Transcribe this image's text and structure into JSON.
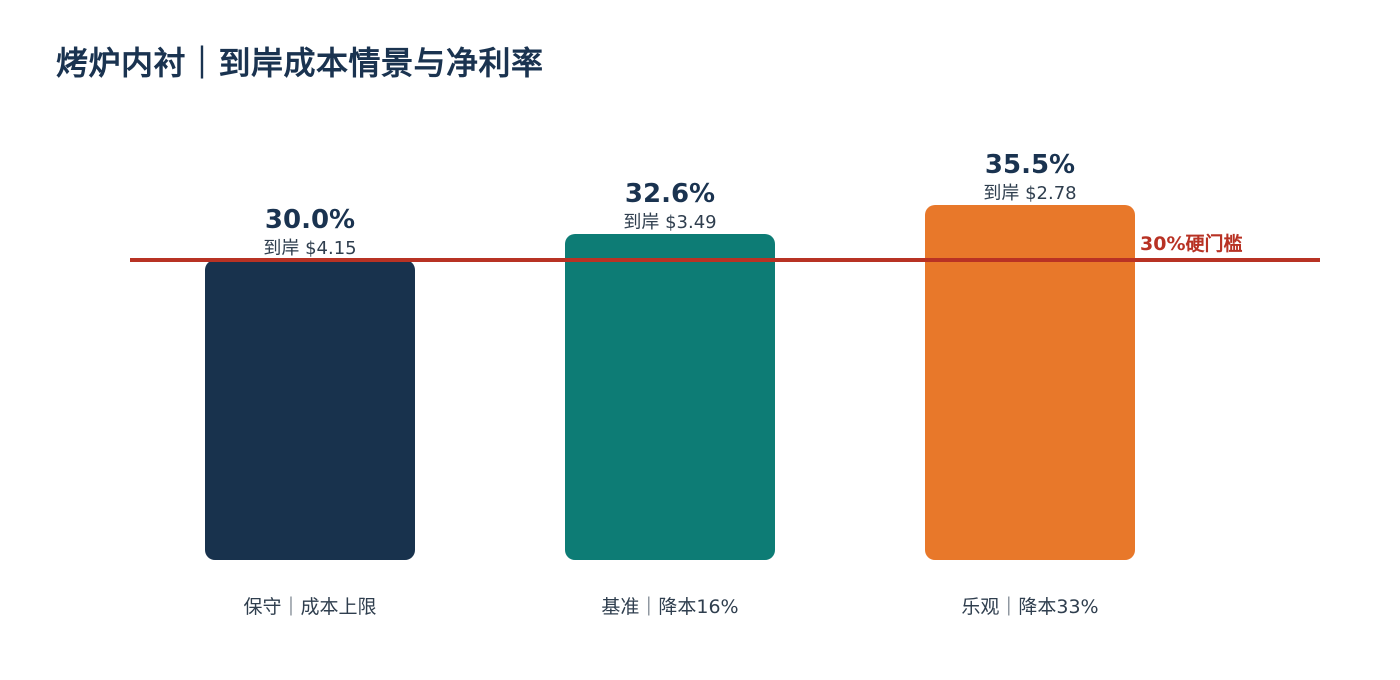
{
  "title": "烤炉内衬｜到岸成本情景与净利率",
  "colors": {
    "title": "#1a3350",
    "threshold": "#b83224",
    "value_label": "#1a3350",
    "sub_label": "#2f3e4e",
    "category_label": "#2f3e4e"
  },
  "chart_data": {
    "type": "bar",
    "categories": [
      "保守｜成本上限",
      "基准｜降本16%",
      "乐观｜降本33%"
    ],
    "values": [
      30.0,
      32.6,
      35.5
    ],
    "value_labels": [
      "30.0%",
      "32.6%",
      "35.5%"
    ],
    "cost_labels": [
      "到岸 $4.15",
      "到岸 $3.49",
      "到岸 $2.78"
    ],
    "bar_colors": [
      "#18324d",
      "#0d7c75",
      "#e8782a"
    ],
    "ylim": [
      0,
      35.5
    ],
    "threshold": {
      "value": 30,
      "label": "30%硬门槛"
    },
    "grid": false,
    "legend": "none"
  }
}
